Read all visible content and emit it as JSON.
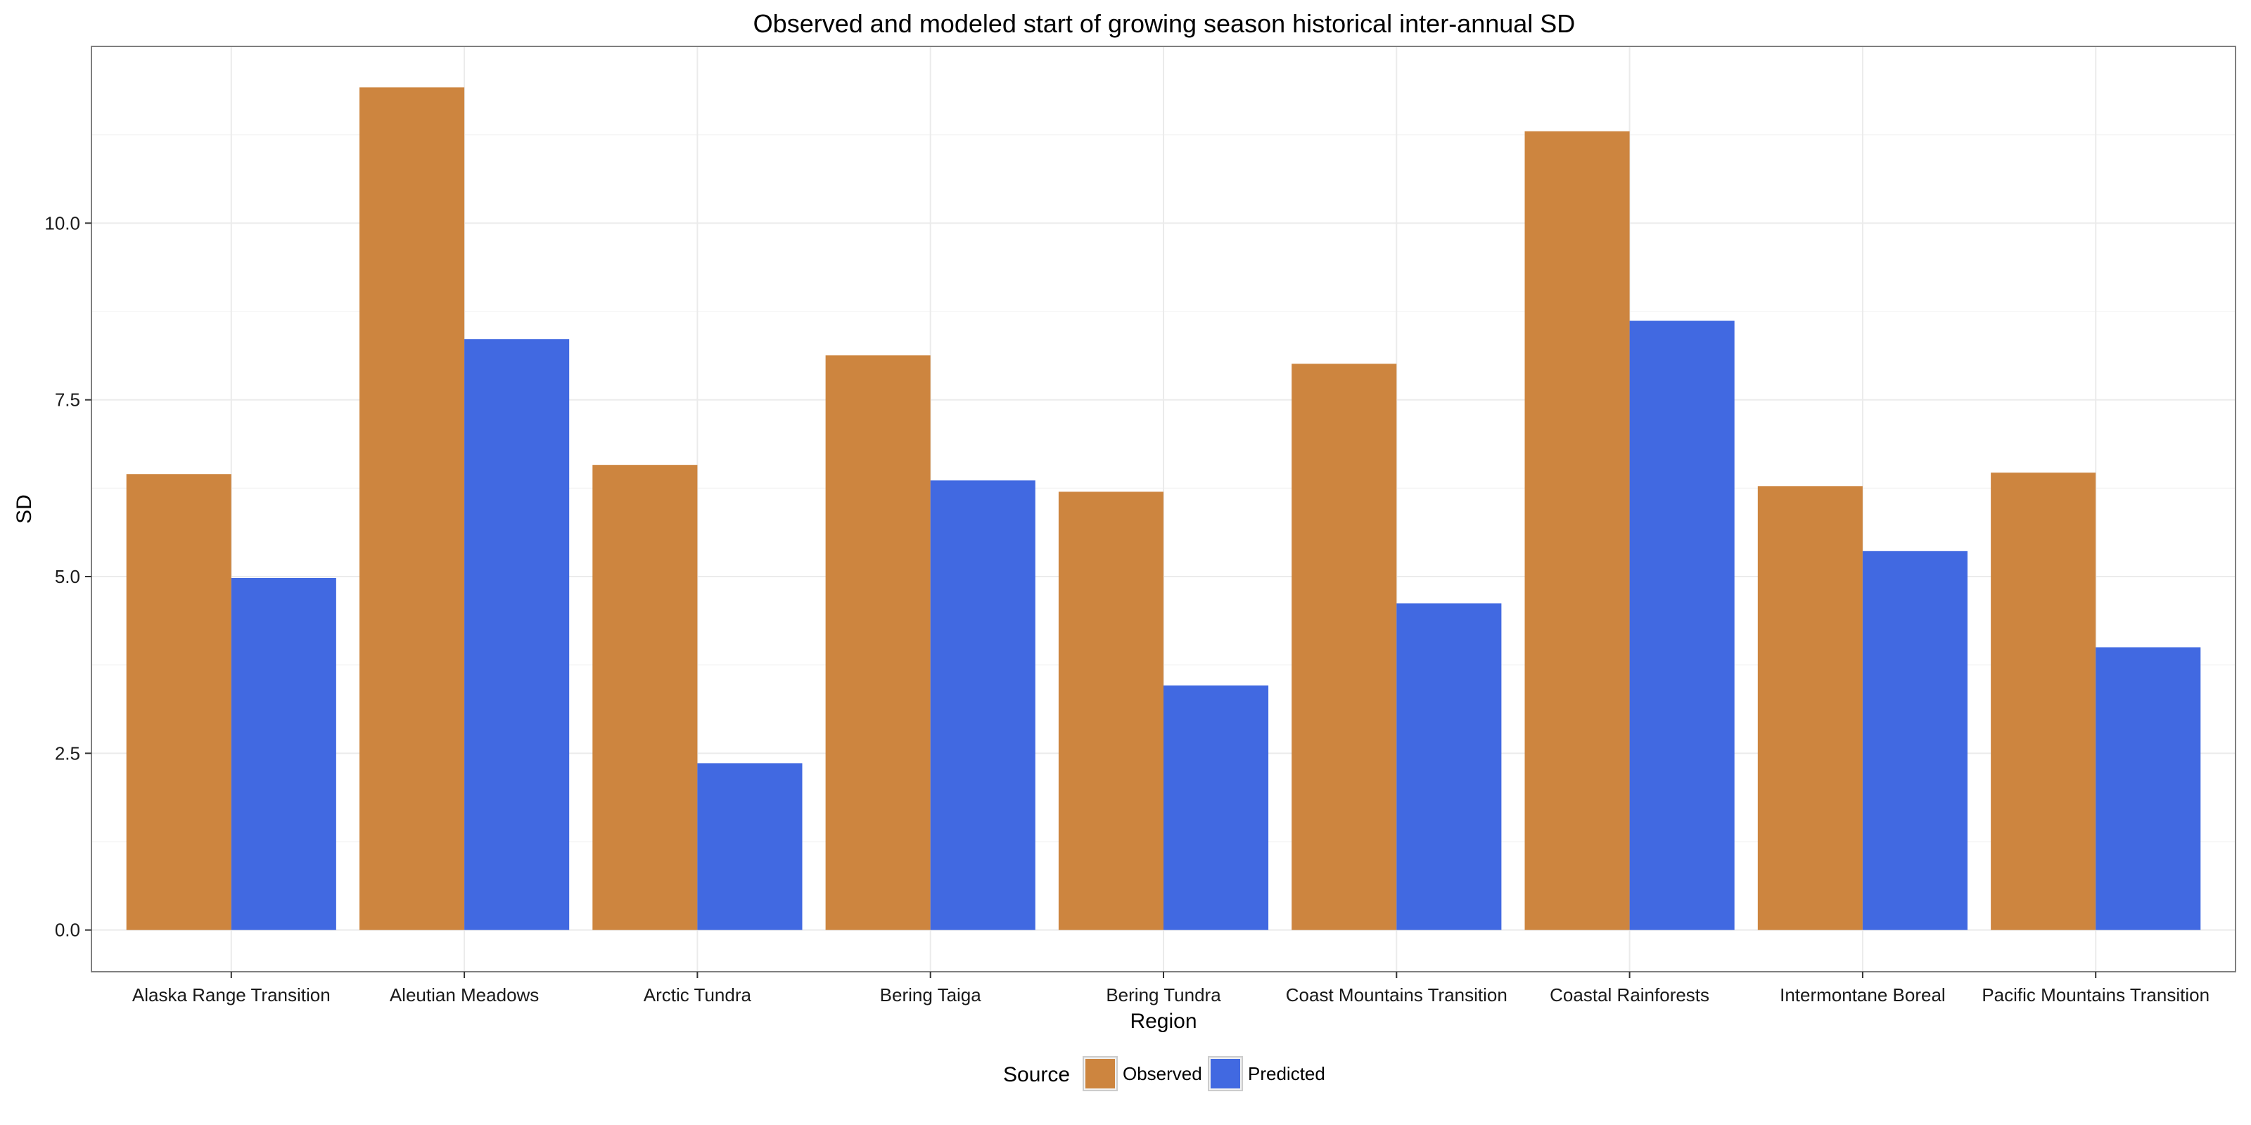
{
  "chart_data": {
    "type": "bar",
    "title": "Observed and modeled start of growing season historical inter-annual SD",
    "xlabel": "Region",
    "ylabel": "SD",
    "categories": [
      "Alaska Range Transition",
      "Aleutian Meadows",
      "Arctic Tundra",
      "Bering Taiga",
      "Bering Tundra",
      "Coast Mountains Transition",
      "Coastal Rainforests",
      "Intermontane Boreal",
      "Pacific Mountains Transition"
    ],
    "series": [
      {
        "name": "Observed",
        "color": "#CD853F",
        "values": [
          6.45,
          11.92,
          6.58,
          8.13,
          6.2,
          8.01,
          11.3,
          6.28,
          6.47
        ]
      },
      {
        "name": "Predicted",
        "color": "#4169E1",
        "values": [
          4.98,
          8.36,
          2.36,
          6.36,
          3.46,
          4.62,
          8.62,
          5.36,
          4.0
        ]
      }
    ],
    "ylim": [
      -0.59,
      12.5
    ],
    "yticks": [
      0.0,
      2.5,
      5.0,
      7.5,
      10.0
    ],
    "ytick_labels": [
      "0.0",
      "2.5",
      "5.0",
      "7.5",
      "10.0"
    ],
    "grid": true,
    "legend": {
      "title": "Source",
      "position": "bottom"
    }
  }
}
